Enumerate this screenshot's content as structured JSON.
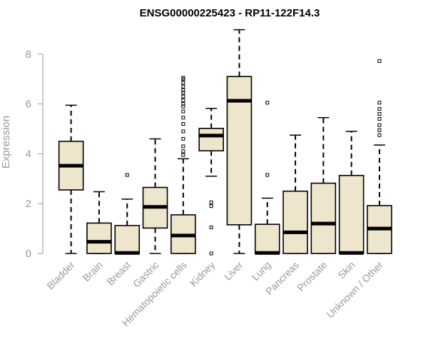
{
  "chart_data": {
    "type": "boxplot",
    "title": "ENSG00000225423 - RP11-122F14.3",
    "xlabel": "",
    "ylabel": "Expression",
    "ylim": [
      0,
      9
    ],
    "yticks": [
      0,
      2,
      4,
      6,
      8
    ],
    "grid": false,
    "box_fill": "#ede5cc",
    "categories": [
      "Bladder",
      "Brain",
      "Breast",
      "Gastric",
      "Hematopoietic cells",
      "Kidney",
      "Liver",
      "Lung",
      "Pancreas",
      "Prostate",
      "Skin",
      "Unknown / Other"
    ],
    "boxes": [
      {
        "whisker_low": 0.0,
        "q1": 2.55,
        "median": 3.52,
        "q3": 4.5,
        "whisker_high": 5.95,
        "outliers": []
      },
      {
        "whisker_low": 0.0,
        "q1": 0.0,
        "median": 0.47,
        "q3": 1.22,
        "whisker_high": 2.48,
        "outliers": []
      },
      {
        "whisker_low": 0.0,
        "q1": 0.0,
        "median": 0.02,
        "q3": 1.12,
        "whisker_high": 2.18,
        "outliers": [
          3.15
        ]
      },
      {
        "whisker_low": 0.0,
        "q1": 1.02,
        "median": 1.87,
        "q3": 2.65,
        "whisker_high": 4.6,
        "outliers": []
      },
      {
        "whisker_low": 0.0,
        "q1": 0.0,
        "median": 0.72,
        "q3": 1.55,
        "whisker_high": 3.8,
        "outliers": [
          3.95,
          4.1,
          4.3,
          4.6,
          4.9,
          5.2,
          5.45,
          5.7,
          5.9,
          6.0,
          6.15,
          6.3,
          6.45,
          6.55,
          6.7,
          6.85,
          7.0,
          7.05
        ]
      },
      {
        "whisker_low": 3.1,
        "q1": 4.12,
        "median": 4.73,
        "q3": 5.02,
        "whisker_high": 5.82,
        "outliers": [
          2.05,
          1.9,
          1.05,
          0.0
        ]
      },
      {
        "whisker_low": 0.0,
        "q1": 1.15,
        "median": 6.13,
        "q3": 7.1,
        "whisker_high": 8.98,
        "outliers": []
      },
      {
        "whisker_low": 0.0,
        "q1": 0.0,
        "median": 0.02,
        "q3": 1.17,
        "whisker_high": 2.22,
        "outliers": [
          3.15,
          6.05
        ]
      },
      {
        "whisker_low": 0.0,
        "q1": 0.0,
        "median": 0.85,
        "q3": 2.5,
        "whisker_high": 4.75,
        "outliers": []
      },
      {
        "whisker_low": 0.0,
        "q1": 0.0,
        "median": 1.2,
        "q3": 2.82,
        "whisker_high": 5.45,
        "outliers": []
      },
      {
        "whisker_low": 0.0,
        "q1": 0.0,
        "median": 0.02,
        "q3": 3.13,
        "whisker_high": 4.9,
        "outliers": []
      },
      {
        "whisker_low": 0.0,
        "q1": 0.0,
        "median": 1.0,
        "q3": 1.92,
        "whisker_high": 4.35,
        "outliers": [
          4.75,
          4.95,
          5.15,
          5.4,
          5.6,
          5.8,
          6.05,
          7.72
        ]
      }
    ]
  }
}
